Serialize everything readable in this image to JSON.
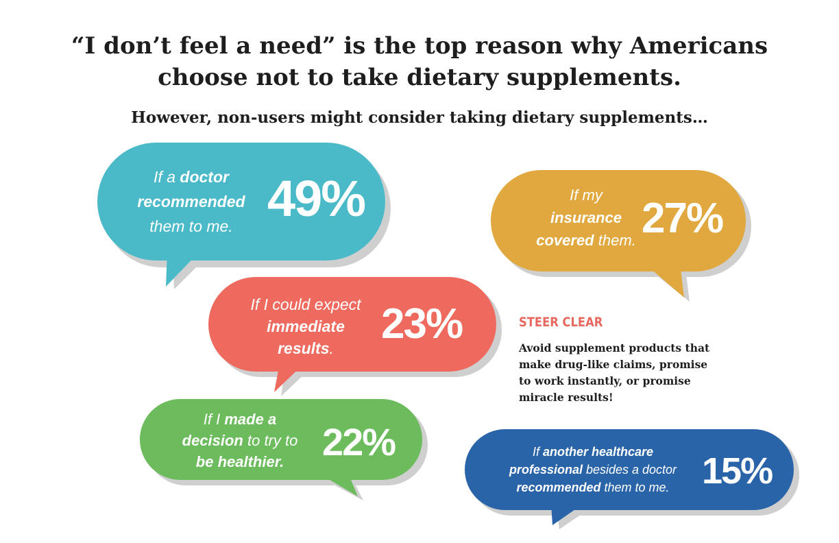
{
  "header": {
    "title_line1": "“I don’t feel a need” is the top reason why Americans",
    "title_line2": "choose not to take dietary supplements.",
    "subtitle": "However, non-users might consider taking dietary supplements…"
  },
  "bubbles": [
    {
      "id": "doctor",
      "text": {
        "l1a": "If a ",
        "l1b": "doctor",
        "l2": "recommended",
        "l3": "them to me."
      },
      "percent": "49%",
      "color": "#4bbac8"
    },
    {
      "id": "insurance",
      "text": {
        "l1": "If my",
        "l2": "insurance",
        "l3a": "covered",
        "l3b": " them."
      },
      "percent": "27%",
      "color": "#e0a83e"
    },
    {
      "id": "immediate",
      "text": {
        "l1": "If I could expect",
        "l2": "immediate",
        "l3a": "results",
        "l3b": "."
      },
      "percent": "23%",
      "color": "#ef6a5e"
    },
    {
      "id": "healthier",
      "text": {
        "l1a": "If I ",
        "l1b": "made a",
        "l2a": "decision",
        "l2b": " to try to",
        "l3": "be healthier."
      },
      "percent": "22%",
      "color": "#6cbb5c"
    },
    {
      "id": "other-professional",
      "text": {
        "l1a": "If ",
        "l1b": "another healthcare",
        "l2a": "professional",
        "l2b": " besides a doctor",
        "l3a": "recommended",
        "l3b": " them to me."
      },
      "percent": "15%",
      "color": "#2a64a8"
    }
  ],
  "steer_clear": {
    "title": "STEER CLEAR",
    "body_lines": [
      "Avoid supplement products that",
      "make drug-like claims, promise",
      "to work instantly, or promise",
      "miracle results!"
    ],
    "title_color": "#e8685f"
  },
  "colors": {
    "shadow": "#cfcfcf",
    "text": "#1e1e1e"
  }
}
